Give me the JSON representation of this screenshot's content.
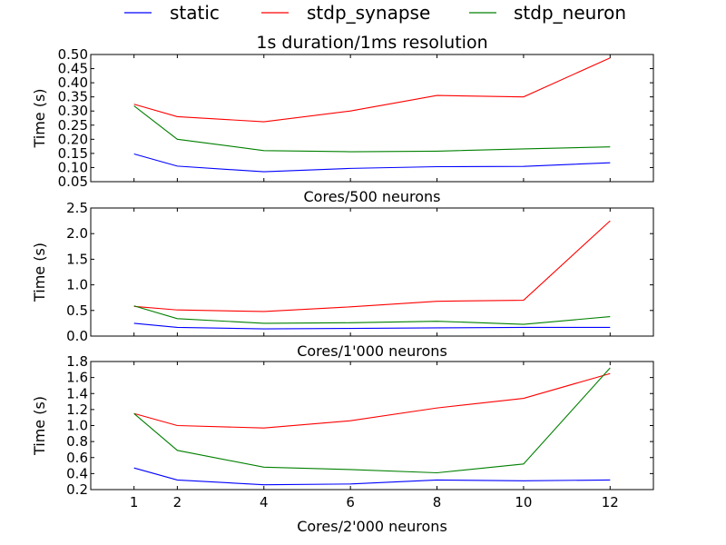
{
  "legend": {
    "placement": "top-center",
    "entries": [
      {
        "label": "static",
        "color": "#0000ff"
      },
      {
        "label": "stdp_synapse",
        "color": "#ff0000"
      },
      {
        "label": "stdp_neuron",
        "color": "#008000"
      }
    ]
  },
  "chart_data": [
    {
      "type": "line",
      "title": "1s duration/1ms resolution",
      "xlabel": "Cores/500 neurons",
      "ylabel": "Time (s)",
      "x": [
        1,
        2,
        4,
        6,
        8,
        10,
        12
      ],
      "xlim": [
        0,
        13
      ],
      "ylim": [
        0.05,
        0.5
      ],
      "y_ticks": [
        "0.05",
        "0.10",
        "0.15",
        "0.20",
        "0.25",
        "0.30",
        "0.35",
        "0.40",
        "0.45",
        "0.50"
      ],
      "x_ticks": [],
      "series": [
        {
          "name": "static",
          "color": "#0000ff",
          "values": [
            0.148,
            0.105,
            0.085,
            0.097,
            0.103,
            0.104,
            0.117
          ]
        },
        {
          "name": "stdp_synapse",
          "color": "#ff0000",
          "values": [
            0.324,
            0.28,
            0.262,
            0.3,
            0.355,
            0.35,
            0.488
          ]
        },
        {
          "name": "stdp_neuron",
          "color": "#008000",
          "values": [
            0.318,
            0.2,
            0.16,
            0.156,
            0.158,
            0.166,
            0.173
          ]
        }
      ]
    },
    {
      "type": "line",
      "title": "",
      "xlabel": "Cores/1'000 neurons",
      "ylabel": "Time (s)",
      "x": [
        1,
        2,
        4,
        6,
        8,
        10,
        12
      ],
      "xlim": [
        0,
        13
      ],
      "ylim": [
        0.0,
        2.5
      ],
      "y_ticks": [
        "0.0",
        "0.5",
        "1.0",
        "1.5",
        "2.0",
        "2.5"
      ],
      "x_ticks": [],
      "series": [
        {
          "name": "static",
          "color": "#0000ff",
          "values": [
            0.25,
            0.17,
            0.14,
            0.15,
            0.16,
            0.17,
            0.17
          ]
        },
        {
          "name": "stdp_synapse",
          "color": "#ff0000",
          "values": [
            0.58,
            0.51,
            0.48,
            0.57,
            0.68,
            0.7,
            2.25
          ]
        },
        {
          "name": "stdp_neuron",
          "color": "#008000",
          "values": [
            0.59,
            0.34,
            0.25,
            0.26,
            0.29,
            0.23,
            0.38
          ]
        }
      ]
    },
    {
      "type": "line",
      "title": "",
      "xlabel": "Cores/2'000 neurons",
      "ylabel": "Time (s)",
      "x": [
        1,
        2,
        4,
        6,
        8,
        10,
        12
      ],
      "xlim": [
        0,
        13
      ],
      "ylim": [
        0.2,
        1.8
      ],
      "y_ticks": [
        "0.2",
        "0.4",
        "0.6",
        "0.8",
        "1.0",
        "1.2",
        "1.4",
        "1.6",
        "1.8"
      ],
      "x_ticks": [
        "1",
        "2",
        "4",
        "6",
        "8",
        "10",
        "12"
      ],
      "series": [
        {
          "name": "static",
          "color": "#0000ff",
          "values": [
            0.47,
            0.32,
            0.26,
            0.27,
            0.32,
            0.31,
            0.32
          ]
        },
        {
          "name": "stdp_synapse",
          "color": "#ff0000",
          "values": [
            1.15,
            1.0,
            0.97,
            1.06,
            1.22,
            1.34,
            1.65
          ]
        },
        {
          "name": "stdp_neuron",
          "color": "#008000",
          "values": [
            1.15,
            0.69,
            0.48,
            0.45,
            0.41,
            0.52,
            1.72
          ]
        }
      ]
    }
  ]
}
